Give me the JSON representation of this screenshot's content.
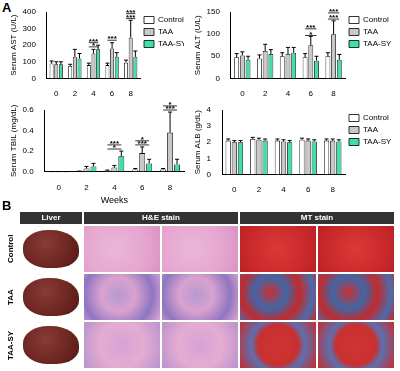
{
  "panel_labels": [
    "A",
    "B"
  ],
  "chart_data": [
    {
      "type": "bar",
      "y_label": "Serum AST (U/L)",
      "categories": [
        "0",
        "2",
        "4",
        "6",
        "8"
      ],
      "ylim": [
        0,
        400
      ],
      "yticks": [
        0,
        100,
        200,
        300,
        400
      ],
      "grid": false,
      "legend": "right",
      "series": [
        {
          "name": "Control",
          "color": "#ffffff",
          "values": [
            90,
            75,
            80,
            80,
            95
          ],
          "errors": [
            15,
            10,
            12,
            12,
            15
          ]
        },
        {
          "name": "TAA",
          "color": "#c8c8c8",
          "values": [
            85,
            130,
            150,
            180,
            245
          ],
          "errors": [
            15,
            45,
            25,
            35,
            105
          ]
        },
        {
          "name": "TAA-SY",
          "color": "#3ee0a8",
          "values": [
            85,
            120,
            175,
            130,
            130
          ],
          "errors": [
            15,
            30,
            25,
            25,
            35
          ]
        }
      ],
      "annotations": [
        {
          "text": "*",
          "category": "4",
          "y": 190
        },
        {
          "text": "***",
          "category": "4",
          "y": 215
        },
        {
          "text": "***",
          "category": "6",
          "y": 230
        },
        {
          "text": "***",
          "category": "8",
          "y": 360
        },
        {
          "text": "***",
          "category": "8",
          "y": 390
        }
      ]
    },
    {
      "type": "bar",
      "y_label": "Serum ALT (U/L)",
      "categories": [
        "0",
        "2",
        "4",
        "6",
        "8"
      ],
      "ylim": [
        0,
        150
      ],
      "yticks": [
        0,
        50,
        100,
        150
      ],
      "grid": false,
      "legend": "right",
      "series": [
        {
          "name": "Control",
          "color": "#ffffff",
          "values": [
            48,
            45,
            50,
            48,
            50
          ],
          "errors": [
            8,
            8,
            8,
            8,
            8
          ]
        },
        {
          "name": "TAA",
          "color": "#c8c8c8",
          "values": [
            52,
            62,
            55,
            75,
            100
          ],
          "errors": [
            8,
            15,
            15,
            20,
            30
          ]
        },
        {
          "name": "TAA-SY",
          "color": "#3ee0a8",
          "values": [
            42,
            55,
            58,
            40,
            42
          ],
          "errors": [
            8,
            10,
            12,
            10,
            12
          ]
        }
      ],
      "annotations": [
        {
          "text": "*",
          "category": "6",
          "y": 97
        },
        {
          "text": "***",
          "category": "6",
          "y": 112
        },
        {
          "text": "***",
          "category": "8",
          "y": 134
        },
        {
          "text": "***",
          "category": "8",
          "y": 148
        }
      ]
    },
    {
      "type": "bar",
      "y_label": "Serum TBIL (mg/dL)",
      "x_label": "Weeks",
      "categories": [
        "0",
        "2",
        "4",
        "6",
        "8"
      ],
      "ylim": [
        0,
        0.6
      ],
      "yticks": [
        {
          "value": 0,
          "label": "0.0"
        },
        0.2,
        0.4,
        0.6
      ],
      "grid": false,
      "series": [
        {
          "name": "Control",
          "color": "#ffffff",
          "values": [
            0,
            0,
            0.01,
            0.02,
            0.02
          ],
          "errors": [
            0,
            0.005,
            0.005,
            0.01,
            0.01
          ]
        },
        {
          "name": "TAA",
          "color": "#c8c8c8",
          "values": [
            0,
            0.03,
            0.04,
            0.18,
            0.38
          ],
          "errors": [
            0,
            0.02,
            0.02,
            0.06,
            0.2
          ]
        },
        {
          "name": "TAA-SY",
          "color": "#3ee0a8",
          "values": [
            0,
            0.05,
            0.15,
            0.08,
            0.07
          ],
          "errors": [
            0,
            0.03,
            0.05,
            0.04,
            0.05
          ]
        }
      ],
      "annotations": [
        {
          "text": "*",
          "category": "4",
          "y": 0.22
        },
        {
          "text": "***",
          "category": "4",
          "y": 0.26
        },
        {
          "text": "***",
          "category": "6",
          "y": 0.26
        },
        {
          "text": "*",
          "category": "6",
          "y": 0.3
        },
        {
          "text": "***",
          "category": "8",
          "y": 0.6
        },
        {
          "text": "*",
          "category": "8",
          "y": 0.64
        }
      ]
    },
    {
      "type": "bar",
      "y_label": "Serum ALB (g/dL)",
      "categories": [
        "0",
        "2",
        "4",
        "6",
        "8"
      ],
      "ylim": [
        0,
        4
      ],
      "yticks": [
        0,
        1,
        2,
        3,
        4
      ],
      "grid": false,
      "legend": "right",
      "series": [
        {
          "name": "Control",
          "color": "#ffffff",
          "values": [
            2.1,
            2.2,
            2.1,
            2.15,
            2.1
          ],
          "errors": [
            0.1,
            0.1,
            0.1,
            0.1,
            0.1
          ]
        },
        {
          "name": "TAA",
          "color": "#c8c8c8",
          "values": [
            2.0,
            2.15,
            2.05,
            2.1,
            2.1
          ],
          "errors": [
            0.1,
            0.1,
            0.1,
            0.1,
            0.1
          ]
        },
        {
          "name": "TAA-SY",
          "color": "#3ee0a8",
          "values": [
            2.0,
            2.1,
            2.0,
            2.05,
            2.05
          ],
          "errors": [
            0.1,
            0.1,
            0.1,
            0.1,
            0.1
          ]
        }
      ]
    }
  ],
  "image_panel": {
    "column_headers": [
      "Liver",
      "H&E stain",
      "MT stain"
    ],
    "row_labels": [
      "Control",
      "TAA",
      "TAA-SY"
    ]
  }
}
